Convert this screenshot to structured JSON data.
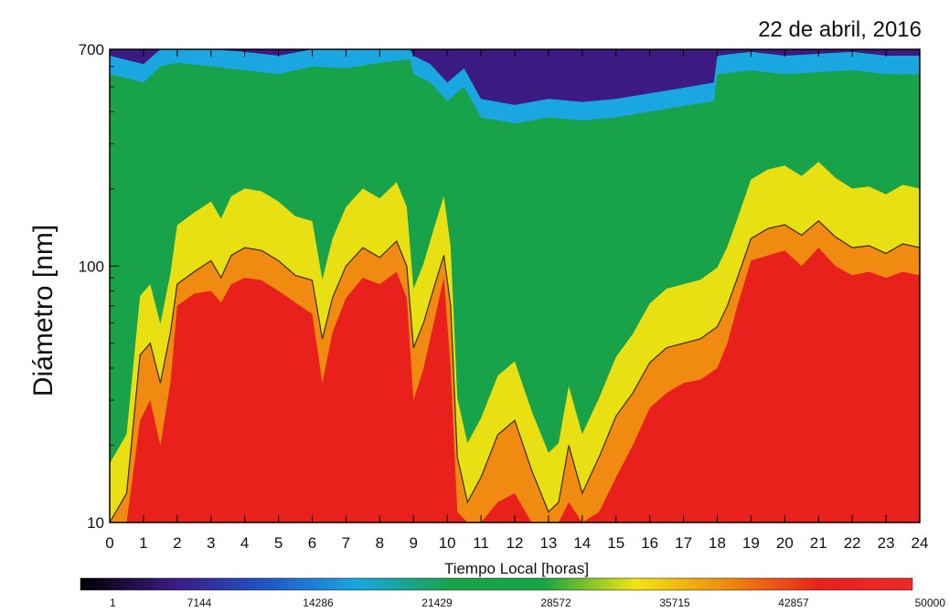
{
  "chart_data": {
    "type": "heatmap",
    "title": "22 de abril, 2016",
    "xlabel": "Tiempo Local [horas]",
    "ylabel": "Diámetro [nm]",
    "x_ticks": [
      0,
      1,
      2,
      3,
      4,
      5,
      6,
      7,
      8,
      9,
      10,
      11,
      12,
      13,
      14,
      15,
      16,
      17,
      18,
      19,
      20,
      21,
      22,
      23,
      24
    ],
    "xlim": [
      0,
      24
    ],
    "y_scale": "log",
    "ylim": [
      10,
      700
    ],
    "y_ticks": [
      10,
      100,
      700
    ],
    "colorbar": {
      "min": 1,
      "max": 50000,
      "tick_values": [
        1,
        7144,
        14286,
        21429,
        28572,
        35715,
        42857,
        50000
      ],
      "tick_labels": [
        "1",
        "7144",
        "14286",
        "21429",
        "28572",
        "35715",
        "42857",
        "50000"
      ],
      "colormap": [
        "#000000",
        "#3b1a82",
        "#1f55c8",
        "#1aa6e0",
        "#18a34a",
        "#16a444",
        "#f2e512",
        "#f08a10",
        "#e8211c",
        "#ee2a2a"
      ]
    },
    "boundary_diameter_nm": {
      "x": [
        0.0,
        0.5,
        0.9,
        1.2,
        1.5,
        1.8,
        2.0,
        2.5,
        3.0,
        3.3,
        3.6,
        4.0,
        4.5,
        5.0,
        5.5,
        6.0,
        6.3,
        6.6,
        7.0,
        7.5,
        8.0,
        8.5,
        8.8,
        9.0,
        9.3,
        9.6,
        9.9,
        10.1,
        10.3,
        10.6,
        11.0,
        11.5,
        12.0,
        12.5,
        13.0,
        13.3,
        13.6,
        14.0,
        14.5,
        15.0,
        15.5,
        16.0,
        16.5,
        17.0,
        17.5,
        18.0,
        18.3,
        18.6,
        19.0,
        19.5,
        20.0,
        20.5,
        21.0,
        21.5,
        22.0,
        22.5,
        23.0,
        23.5,
        24.0
      ],
      "y": [
        10,
        13,
        45,
        50,
        35,
        55,
        85,
        95,
        105,
        90,
        110,
        118,
        115,
        105,
        92,
        88,
        52,
        75,
        100,
        118,
        108,
        125,
        100,
        48,
        60,
        82,
        110,
        70,
        18,
        12,
        15,
        22,
        25,
        16,
        11,
        12,
        20,
        13,
        18,
        26,
        32,
        42,
        48,
        50,
        52,
        58,
        70,
        90,
        128,
        140,
        145,
        132,
        150,
        130,
        118,
        120,
        112,
        122,
        118
      ]
    },
    "red_top_nm": {
      "x": [
        0.0,
        0.5,
        0.9,
        1.2,
        1.5,
        1.8,
        2.0,
        2.5,
        3.0,
        3.3,
        3.6,
        4.0,
        4.5,
        5.0,
        5.5,
        6.0,
        6.3,
        6.6,
        7.0,
        7.5,
        8.0,
        8.5,
        8.8,
        9.0,
        9.3,
        9.6,
        9.9,
        10.1,
        10.3,
        10.6,
        11.0,
        11.5,
        12.0,
        12.5,
        13.0,
        13.3,
        13.6,
        14.0,
        14.5,
        15.0,
        15.5,
        16.0,
        16.5,
        17.0,
        17.5,
        18.0,
        18.3,
        18.6,
        19.0,
        19.5,
        20.0,
        20.5,
        21.0,
        21.5,
        22.0,
        22.5,
        23.0,
        23.5,
        24.0
      ],
      "y": [
        10,
        10,
        25,
        30,
        20,
        35,
        70,
        78,
        80,
        72,
        85,
        90,
        88,
        80,
        72,
        65,
        35,
        55,
        75,
        90,
        85,
        95,
        75,
        30,
        40,
        60,
        90,
        40,
        11,
        10,
        10,
        12,
        13,
        10,
        10,
        10,
        12,
        10,
        11,
        15,
        20,
        28,
        32,
        35,
        36,
        40,
        50,
        70,
        105,
        110,
        115,
        100,
        118,
        100,
        92,
        95,
        90,
        95,
        92
      ]
    },
    "green_top_nm": {
      "x": [
        0.0,
        1.0,
        1.5,
        2.0,
        3.0,
        4.0,
        5.0,
        6.0,
        7.0,
        8.0,
        8.9,
        9.0,
        9.5,
        10.0,
        10.5,
        11.0,
        12.0,
        13.0,
        14.0,
        15.0,
        16.0,
        17.0,
        17.9,
        18.0,
        19.0,
        20.0,
        21.0,
        22.0,
        23.0,
        24.0
      ],
      "y": [
        560,
        520,
        600,
        620,
        600,
        580,
        560,
        600,
        590,
        620,
        640,
        560,
        520,
        440,
        500,
        380,
        360,
        380,
        370,
        380,
        400,
        420,
        440,
        560,
        580,
        560,
        570,
        580,
        560,
        560
      ]
    }
  }
}
